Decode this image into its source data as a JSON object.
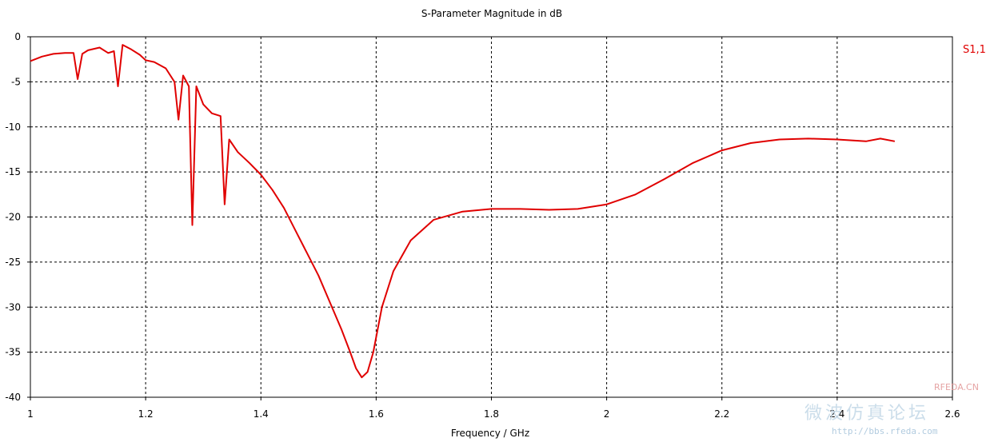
{
  "chart_data": {
    "type": "line",
    "title": "S-Parameter Magnitude in dB",
    "xlabel": "Frequency / GHz",
    "ylabel": "",
    "xlim": [
      1,
      2.6
    ],
    "ylim": [
      -40,
      0
    ],
    "xticks": [
      1,
      1.2,
      1.4,
      1.6,
      1.8,
      2,
      2.2,
      2.4,
      2.6
    ],
    "xtick_labels": [
      "1",
      "1.2",
      "1.4",
      "1.6",
      "1.8",
      "2",
      "2.2",
      "2.4",
      "2.6"
    ],
    "yticks": [
      0,
      -5,
      -10,
      -15,
      -20,
      -25,
      -30,
      -35,
      -40
    ],
    "ytick_labels": [
      "0",
      "-5",
      "-10",
      "-15",
      "-20",
      "-25",
      "-30",
      "-35",
      "-40"
    ],
    "grid": true,
    "legend_position": "top-right",
    "series": [
      {
        "name": "S1,1",
        "color": "#e00000",
        "x": [
          1.0,
          1.02,
          1.04,
          1.06,
          1.075,
          1.082,
          1.09,
          1.1,
          1.12,
          1.135,
          1.145,
          1.152,
          1.16,
          1.175,
          1.19,
          1.2,
          1.215,
          1.235,
          1.25,
          1.257,
          1.265,
          1.275,
          1.281,
          1.288,
          1.3,
          1.315,
          1.33,
          1.337,
          1.345,
          1.36,
          1.38,
          1.4,
          1.42,
          1.44,
          1.46,
          1.48,
          1.5,
          1.52,
          1.54,
          1.555,
          1.565,
          1.575,
          1.585,
          1.595,
          1.61,
          1.63,
          1.66,
          1.7,
          1.75,
          1.8,
          1.85,
          1.9,
          1.95,
          2.0,
          2.05,
          2.1,
          2.15,
          2.2,
          2.25,
          2.3,
          2.35,
          2.4,
          2.45,
          2.475,
          2.5
        ],
        "values": [
          -2.7,
          -2.2,
          -1.9,
          -1.8,
          -1.8,
          -4.7,
          -1.9,
          -1.5,
          -1.2,
          -1.8,
          -1.6,
          -5.5,
          -0.9,
          -1.4,
          -2.0,
          -2.6,
          -2.8,
          -3.5,
          -5.0,
          -9.2,
          -4.3,
          -5.5,
          -20.9,
          -5.5,
          -7.5,
          -8.5,
          -8.8,
          -18.6,
          -11.4,
          -12.8,
          -14.0,
          -15.3,
          -17.0,
          -19.0,
          -21.5,
          -24.0,
          -26.5,
          -29.5,
          -32.5,
          -35.0,
          -36.8,
          -37.8,
          -37.2,
          -35.0,
          -30.0,
          -26.0,
          -22.6,
          -20.3,
          -19.4,
          -19.1,
          -19.1,
          -19.2,
          -19.1,
          -18.6,
          -17.5,
          -15.8,
          -14.0,
          -12.6,
          -11.8,
          -11.4,
          -11.3,
          -11.4,
          -11.6,
          -11.3,
          -11.6
        ]
      }
    ]
  },
  "watermark": {
    "line1": "RFEDA.CN",
    "line2": "微波仿真论坛",
    "line3": "http://bbs.rfeda.com"
  }
}
